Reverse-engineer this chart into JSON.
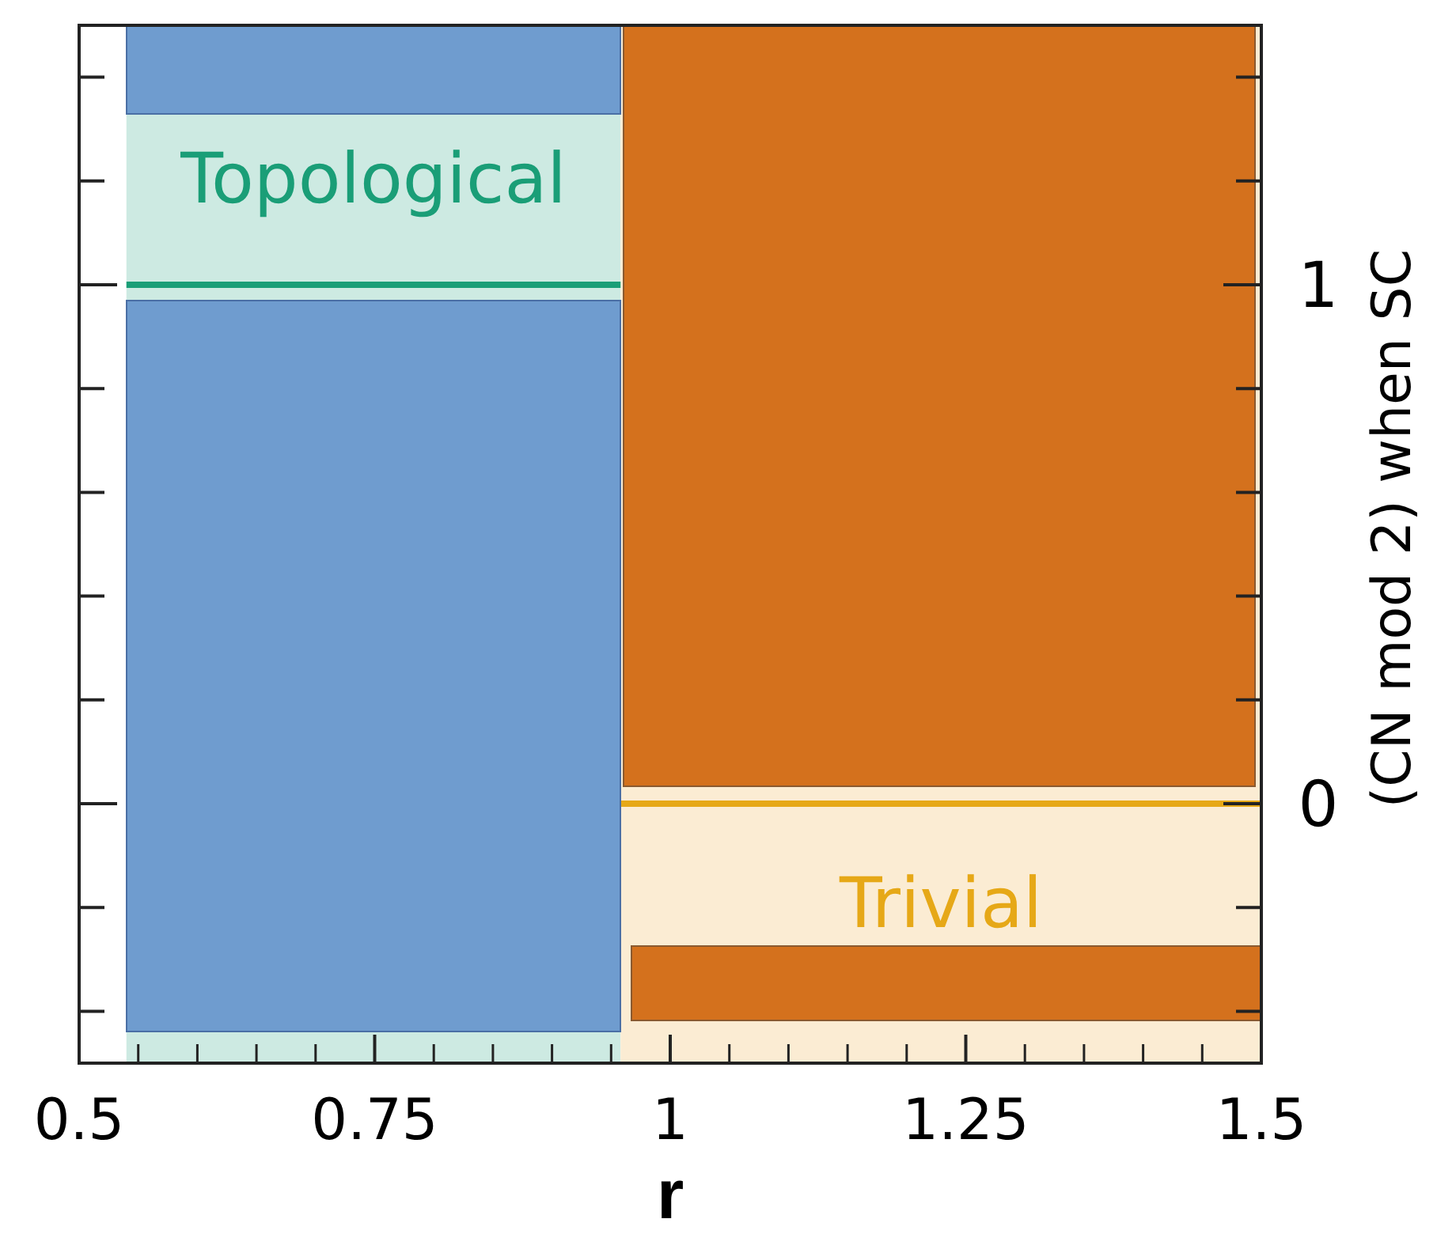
{
  "chart_data": {
    "type": "line",
    "xlabel": "r",
    "ylabel": "(CN mod 2) when SC",
    "xlim": [
      0.5,
      1.5
    ],
    "xticks": [
      0.5,
      0.75,
      1,
      1.25,
      1.5
    ],
    "ylim": [
      -0.5,
      1.5
    ],
    "yticks": [
      {
        "value": -0.4,
        "label": null
      },
      {
        "value": -0.2,
        "label": null
      },
      0,
      {
        "value": 0.2,
        "label": null
      },
      {
        "value": 0.4,
        "label": null
      },
      {
        "value": 0.6,
        "label": null
      },
      {
        "value": 0.8,
        "label": null
      },
      1,
      {
        "value": 1.2,
        "label": null
      },
      {
        "value": 1.4,
        "label": null
      }
    ],
    "series": [
      {
        "color": "#1a9e77",
        "x": [
          0.54,
          0.958
        ],
        "values": [
          1,
          1
        ]
      },
      {
        "color": "#e6a817",
        "x": [
          0.958,
          1.5
        ],
        "values": [
          0,
          0
        ]
      }
    ],
    "bands": [
      {
        "axis": "x",
        "from": 0.54,
        "to": 0.958,
        "label": "Topological",
        "color": "#cdeae2"
      },
      {
        "axis": "x",
        "from": 0.958,
        "to": 1.5,
        "label": "Trivial",
        "color": "#fbecd3"
      }
    ],
    "line_style": "solid"
  }
}
